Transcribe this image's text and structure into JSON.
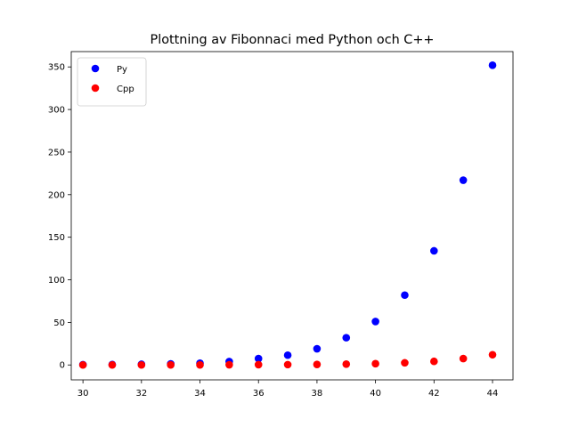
{
  "chart_data": {
    "type": "scatter",
    "title": "Plottning av Fibonnaci med Python och C++",
    "xlabel": "",
    "ylabel": "",
    "xlim": [
      29.6,
      44.7
    ],
    "ylim": [
      -17.5,
      368
    ],
    "xticks": [
      30,
      32,
      34,
      36,
      38,
      40,
      42,
      44
    ],
    "yticks": [
      0,
      50,
      100,
      150,
      200,
      250,
      300,
      350
    ],
    "grid": false,
    "legend_position": "top-left",
    "x": [
      30,
      31,
      32,
      33,
      34,
      35,
      36,
      37,
      38,
      39,
      40,
      41,
      42,
      43,
      44
    ],
    "series": [
      {
        "name": "Py",
        "color": "#0000ff",
        "values": [
          0.3,
          0.5,
          0.8,
          1.3,
          2.1,
          4.0,
          7.5,
          11.5,
          19.0,
          32.0,
          51.0,
          82.0,
          134.0,
          217.0,
          352.0
        ]
      },
      {
        "name": "Cpp",
        "color": "#ff0000",
        "values": [
          0.0,
          0.0,
          0.0,
          0.1,
          0.1,
          0.2,
          0.3,
          0.4,
          0.6,
          1.0,
          1.5,
          2.5,
          4.2,
          7.5,
          12.0
        ]
      }
    ]
  }
}
